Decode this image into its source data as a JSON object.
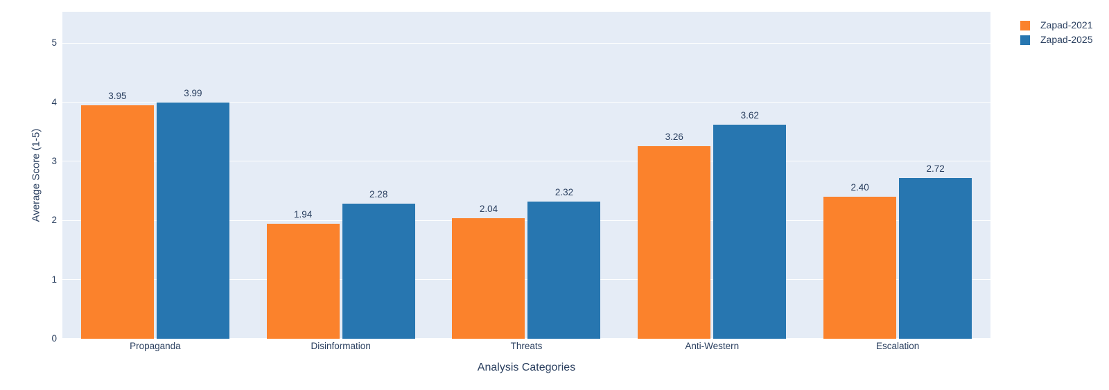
{
  "figure": {
    "background": "#ffffff",
    "plot_background": "#e5ecf6",
    "grid_color": "#ffffff",
    "text_color": "#2a3f5f"
  },
  "chart_data": {
    "type": "bar",
    "title": "",
    "xlabel": "Analysis Categories",
    "ylabel": "Average Score (1-5)",
    "categories": [
      "Propaganda",
      "Disinformation",
      "Threats",
      "Anti-Western",
      "Escalation"
    ],
    "series": [
      {
        "name": "Zapad-2021",
        "color": "#fb822c",
        "values": [
          3.95,
          1.94,
          2.04,
          3.26,
          2.4
        ],
        "labels": [
          "3.95",
          "1.94",
          "2.04",
          "3.26",
          "2.40"
        ]
      },
      {
        "name": "Zapad-2025",
        "color": "#2776b0",
        "values": [
          3.99,
          2.28,
          2.32,
          3.62,
          2.72
        ],
        "labels": [
          "3.99",
          "2.28",
          "2.32",
          "3.62",
          "2.72"
        ]
      }
    ],
    "yticks": [
      0,
      1,
      2,
      3,
      4,
      5
    ],
    "ytick_labels": [
      "0",
      "1",
      "2",
      "3",
      "4",
      "5"
    ],
    "ylim": [
      0,
      5.53
    ],
    "grid": true,
    "legend_position": "top-right-outside"
  },
  "legend": {
    "items": [
      {
        "label": "Zapad-2021",
        "color": "#fb822c"
      },
      {
        "label": "Zapad-2025",
        "color": "#2776b0"
      }
    ]
  }
}
